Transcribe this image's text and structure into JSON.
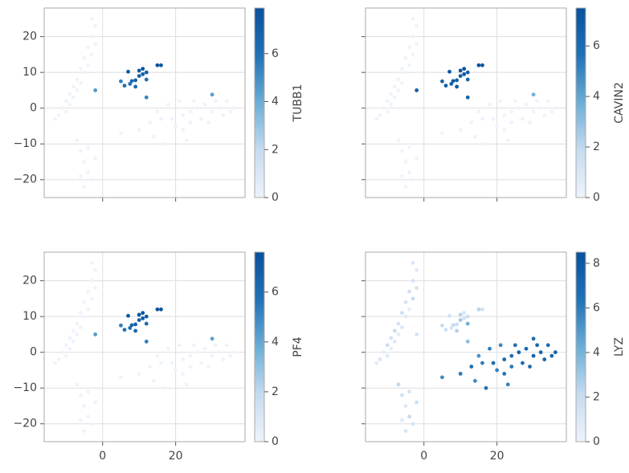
{
  "chart_data": [
    {
      "type": "scatter",
      "colorbar_label": "TUBB1",
      "x": [
        -12,
        -11,
        -10,
        -10,
        -9,
        -9,
        -8,
        -8,
        -7,
        -7,
        -6,
        -6,
        -5,
        -5,
        -4,
        -4,
        -3,
        -3,
        -2,
        -2,
        -3,
        -13,
        -6,
        -5,
        -4,
        -3,
        -6,
        -2,
        -4,
        -5,
        -7,
        5,
        10,
        13,
        16,
        19,
        22,
        24,
        26,
        28,
        30,
        32,
        34,
        36,
        27,
        31,
        25,
        33,
        20,
        29,
        35,
        15,
        18,
        21,
        22,
        23,
        14,
        17,
        24,
        7,
        8,
        9,
        10,
        11,
        12,
        10,
        11,
        12,
        15,
        16,
        7.5,
        5,
        6,
        9,
        12,
        -2,
        30
      ],
      "y": [
        -2,
        0,
        2,
        -1,
        4,
        1,
        6,
        3,
        8,
        5,
        11,
        7,
        14,
        10,
        17,
        12,
        20,
        15,
        23,
        18,
        25,
        -3,
        -12,
        -15,
        -18,
        -20,
        -19,
        -14,
        -11,
        -22,
        -9,
        -7,
        -6,
        -4,
        -3,
        -3,
        -2,
        -1,
        0,
        1,
        -1,
        0,
        2,
        0,
        -3,
        2,
        2,
        -2,
        -5,
        -4,
        -1,
        -1,
        1,
        2,
        -6,
        -9,
        -8,
        -10,
        -4,
        10.2,
        7.6,
        7.8,
        10.5,
        11,
        10,
        9,
        9.5,
        8,
        12,
        12,
        6.8,
        7.5,
        6.3,
        6,
        3,
        5,
        3.8
      ],
      "values": [
        0,
        0,
        0,
        0,
        0,
        0,
        0,
        0,
        0,
        0,
        0,
        0,
        0,
        0,
        0,
        0,
        0,
        0,
        0,
        0,
        0,
        0,
        0,
        0,
        0,
        0,
        0,
        0,
        0,
        0,
        0,
        0,
        0,
        0,
        0,
        0,
        0,
        0,
        0,
        0,
        0,
        0,
        0,
        0,
        0,
        0,
        0,
        0,
        0,
        0,
        0,
        0,
        0,
        0,
        0,
        0,
        0,
        0,
        0,
        7.5,
        6.5,
        6.8,
        7.6,
        7.8,
        7.2,
        7,
        6.9,
        6,
        7.7,
        7.4,
        6.2,
        5.5,
        6,
        6.4,
        5.3,
        4.6,
        4.4
      ],
      "xlim": [
        -16,
        39
      ],
      "ylim": [
        -25,
        28
      ],
      "xticks": [
        0,
        20
      ],
      "yticks": [
        {
          "value": -20,
          "label": "−20"
        },
        {
          "value": -10,
          "label": "−10"
        },
        0,
        10,
        20
      ],
      "clim": [
        0,
        7.9
      ],
      "cticks": [
        0,
        2,
        4,
        6
      ],
      "grid": true,
      "colormap": [
        "#eef3fc",
        "#c6dbef",
        "#6baed6",
        "#2171b5",
        "#08519c"
      ]
    },
    {
      "type": "scatter",
      "colorbar_label": "CAVIN2",
      "x": [
        -12,
        -11,
        -10,
        -10,
        -9,
        -9,
        -8,
        -8,
        -7,
        -7,
        -6,
        -6,
        -5,
        -5,
        -4,
        -4,
        -3,
        -3,
        -2,
        -2,
        -3,
        -13,
        -6,
        -5,
        -4,
        -3,
        -6,
        -2,
        -4,
        -5,
        -7,
        5,
        10,
        13,
        16,
        19,
        22,
        24,
        26,
        28,
        30,
        32,
        34,
        36,
        27,
        31,
        25,
        33,
        20,
        29,
        35,
        15,
        18,
        21,
        22,
        23,
        14,
        17,
        24,
        7,
        8,
        9,
        10,
        11,
        12,
        10,
        11,
        12,
        15,
        16,
        7.5,
        5,
        6,
        9,
        12,
        -2,
        30
      ],
      "y": [
        -2,
        0,
        2,
        -1,
        4,
        1,
        6,
        3,
        8,
        5,
        11,
        7,
        14,
        10,
        17,
        12,
        20,
        15,
        23,
        18,
        25,
        -3,
        -12,
        -15,
        -18,
        -20,
        -19,
        -14,
        -11,
        -22,
        -9,
        -7,
        -6,
        -4,
        -3,
        -3,
        -2,
        -1,
        0,
        1,
        -1,
        0,
        2,
        0,
        -3,
        2,
        2,
        -2,
        -5,
        -4,
        -1,
        -1,
        1,
        2,
        -6,
        -9,
        -8,
        -10,
        -4,
        10.2,
        7.6,
        7.8,
        10.5,
        11,
        10,
        9,
        9.5,
        8,
        12,
        12,
        6.8,
        7.5,
        6.3,
        6,
        3,
        5,
        3.8
      ],
      "values": [
        0,
        0,
        0,
        0,
        0,
        0,
        0,
        0,
        0,
        0,
        0,
        0,
        0,
        0,
        0,
        0,
        0,
        0,
        0,
        0,
        0,
        0,
        0,
        0,
        0,
        0,
        0,
        0,
        0,
        0,
        0,
        0,
        0,
        0,
        0,
        0,
        0,
        0,
        0,
        0,
        0,
        0,
        0,
        0,
        0,
        0,
        0,
        0,
        0,
        0,
        0,
        0,
        0,
        0,
        0,
        0,
        0,
        0,
        0,
        7.2,
        7,
        6.5,
        7.3,
        7.4,
        6.8,
        6.9,
        7.1,
        6.2,
        7.3,
        7.2,
        6.6,
        6.4,
        6.8,
        7,
        6.3,
        6.5,
        3.6
      ],
      "xlim": [
        -16,
        39
      ],
      "ylim": [
        -25,
        28
      ],
      "xticks": [
        0,
        20
      ],
      "yticks": [
        {
          "value": -20,
          "label": "−20"
        },
        {
          "value": -10,
          "label": "−10"
        },
        0,
        10,
        20
      ],
      "clim": [
        0,
        7.5
      ],
      "cticks": [
        0,
        2,
        4,
        6
      ],
      "grid": true,
      "colormap": [
        "#eef3fc",
        "#c6dbef",
        "#6baed6",
        "#2171b5",
        "#08519c"
      ]
    },
    {
      "type": "scatter",
      "colorbar_label": "PF4",
      "x": [
        -12,
        -11,
        -10,
        -10,
        -9,
        -9,
        -8,
        -8,
        -7,
        -7,
        -6,
        -6,
        -5,
        -5,
        -4,
        -4,
        -3,
        -3,
        -2,
        -2,
        -3,
        -13,
        -6,
        -5,
        -4,
        -3,
        -6,
        -2,
        -4,
        -5,
        -7,
        5,
        10,
        13,
        16,
        19,
        22,
        24,
        26,
        28,
        30,
        32,
        34,
        36,
        27,
        31,
        25,
        33,
        20,
        29,
        35,
        15,
        18,
        21,
        22,
        23,
        14,
        17,
        24,
        7,
        8,
        9,
        10,
        11,
        12,
        10,
        11,
        12,
        15,
        16,
        7.5,
        5,
        6,
        9,
        12,
        -2,
        30
      ],
      "y": [
        -2,
        0,
        2,
        -1,
        4,
        1,
        6,
        3,
        8,
        5,
        11,
        7,
        14,
        10,
        17,
        12,
        20,
        15,
        23,
        18,
        25,
        -3,
        -12,
        -15,
        -18,
        -20,
        -19,
        -14,
        -11,
        -22,
        -9,
        -7,
        -6,
        -4,
        -3,
        -3,
        -2,
        -1,
        0,
        1,
        -1,
        0,
        2,
        0,
        -3,
        2,
        2,
        -2,
        -5,
        -4,
        -1,
        -1,
        1,
        2,
        -6,
        -9,
        -8,
        -10,
        -4,
        10.2,
        7.6,
        7.8,
        10.5,
        11,
        10,
        9,
        9.5,
        8,
        12,
        12,
        6.8,
        7.5,
        6.3,
        6,
        3,
        5,
        3.8
      ],
      "values": [
        0,
        0,
        0,
        0,
        0,
        0,
        0,
        0,
        0,
        0,
        0,
        0,
        0,
        0,
        0,
        0,
        0,
        0,
        0,
        0,
        0,
        0,
        0,
        0,
        0,
        0,
        0,
        0,
        0,
        0,
        0,
        0,
        0,
        0,
        0,
        0,
        0,
        0,
        0,
        0,
        0,
        0,
        0,
        0,
        0,
        0,
        0,
        0,
        0,
        0,
        0,
        0,
        0,
        0,
        0,
        0,
        0,
        0,
        0,
        7.3,
        6.4,
        6.6,
        7.4,
        7.5,
        7.1,
        6.8,
        7,
        6.2,
        7.4,
        7.3,
        6,
        5.4,
        5.8,
        6.3,
        5.2,
        4.4,
        4.2
      ],
      "xlim": [
        -16,
        39
      ],
      "ylim": [
        -25,
        28
      ],
      "xticks": [
        0,
        20
      ],
      "yticks": [
        {
          "value": -20,
          "label": "−20"
        },
        {
          "value": -10,
          "label": "−10"
        },
        0,
        10,
        20
      ],
      "clim": [
        0,
        7.6
      ],
      "cticks": [
        0,
        2,
        4,
        6
      ],
      "grid": true,
      "colormap": [
        "#eef3fc",
        "#c6dbef",
        "#6baed6",
        "#2171b5",
        "#08519c"
      ]
    },
    {
      "type": "scatter",
      "colorbar_label": "LYZ",
      "x": [
        -12,
        -11,
        -10,
        -10,
        -9,
        -9,
        -8,
        -8,
        -7,
        -7,
        -6,
        -6,
        -5,
        -5,
        -4,
        -4,
        -3,
        -3,
        -2,
        -2,
        -3,
        -13,
        -6,
        -5,
        -4,
        -3,
        -6,
        -2,
        -4,
        -5,
        -7,
        5,
        10,
        13,
        16,
        19,
        22,
        24,
        26,
        28,
        30,
        32,
        34,
        36,
        27,
        31,
        25,
        33,
        20,
        29,
        35,
        15,
        18,
        21,
        22,
        23,
        14,
        17,
        24,
        7,
        8,
        9,
        10,
        11,
        12,
        10,
        11,
        12,
        15,
        16,
        7.5,
        5,
        6,
        9,
        12,
        -2,
        30
      ],
      "y": [
        -2,
        0,
        2,
        -1,
        4,
        1,
        6,
        3,
        8,
        5,
        11,
        7,
        14,
        10,
        17,
        12,
        20,
        15,
        23,
        18,
        25,
        -3,
        -12,
        -15,
        -18,
        -20,
        -19,
        -14,
        -11,
        -22,
        -9,
        -7,
        -6,
        -4,
        -3,
        -3,
        -2,
        -1,
        0,
        1,
        -1,
        0,
        2,
        0,
        -3,
        2,
        2,
        -2,
        -5,
        -4,
        -1,
        -1,
        1,
        2,
        -6,
        -9,
        -8,
        -10,
        -4,
        10.2,
        7.6,
        7.8,
        10.5,
        11,
        10,
        9,
        9.5,
        8,
        12,
        12,
        6.8,
        7.5,
        6.3,
        6,
        3,
        5,
        3.8
      ],
      "values": [
        1.2,
        0.5,
        1.8,
        0.8,
        1.5,
        0.6,
        2,
        1,
        1.4,
        0.7,
        1.9,
        1.1,
        1.3,
        0.9,
        1.7,
        0.6,
        1.2,
        2.1,
        0.8,
        1.5,
        1,
        0.7,
        1.6,
        1.1,
        2,
        1.3,
        0.9,
        1.8,
        1.4,
        1.2,
        2.2,
        5.5,
        6.2,
        6.5,
        6,
        6.8,
        7,
        6.6,
        7.2,
        6.9,
        7.4,
        7.1,
        6.8,
        7.3,
        6.7,
        7,
        6.5,
        7.2,
        5.8,
        6.9,
        7,
        5.2,
        6,
        5.6,
        6.3,
        5.8,
        5.5,
        6.4,
        6.1,
        1.5,
        2.2,
        1.8,
        2.5,
        1.3,
        2,
        3,
        1.6,
        4.2,
        2.4,
        1.4,
        1.2,
        2,
        1.7,
        2.6,
        3.5,
        1.3,
        6.8
      ],
      "xlim": [
        -16,
        39
      ],
      "ylim": [
        -25,
        28
      ],
      "xticks": [
        0,
        20
      ],
      "yticks": [
        {
          "value": -20,
          "label": "−20"
        },
        {
          "value": -10,
          "label": "−10"
        },
        0,
        10,
        20
      ],
      "clim": [
        0,
        8.5
      ],
      "cticks": [
        0,
        2,
        4,
        6,
        8
      ],
      "grid": true,
      "colormap": [
        "#eef3fc",
        "#c6dbef",
        "#6baed6",
        "#2171b5",
        "#08519c"
      ]
    }
  ]
}
